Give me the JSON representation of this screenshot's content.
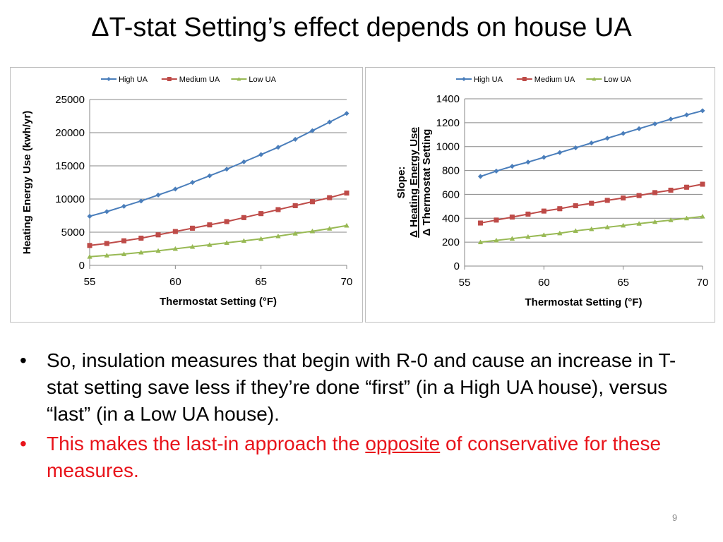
{
  "slide": {
    "title": "ΔT-stat Setting’s effect  depends on house UA",
    "page_number": "9"
  },
  "bullets": {
    "b1": "So, insulation measures that begin with R-0 and cause an increase in T-stat setting save less if they’re done “first” (in a High UA house), versus “last” (in a Low UA house).",
    "b2_pre": "This makes the last-in approach the ",
    "b2_underlined": "opposite",
    "b2_post": " of conservative for these measures.",
    "marker": "•"
  },
  "colors": {
    "high_ua": "#4a7ebb",
    "medium_ua": "#be4b48",
    "low_ua": "#98b954",
    "gridline": "#878787",
    "bullet2_text": "#e8141b"
  },
  "chart_data": [
    {
      "type": "line",
      "xlabel": "Thermostat Setting (°F)",
      "ylabel": "Heating Energy Use (kwh/yr)",
      "xlim": [
        55,
        70
      ],
      "ylim": [
        0,
        25000
      ],
      "xticks": [
        55,
        60,
        65,
        70
      ],
      "yticks": [
        0,
        5000,
        10000,
        15000,
        20000,
        25000
      ],
      "grid": true,
      "legend": "top",
      "x": [
        55,
        56,
        57,
        58,
        59,
        60,
        61,
        62,
        63,
        64,
        65,
        66,
        67,
        68,
        69,
        70
      ],
      "series": [
        {
          "name": "High UA",
          "marker": "diamond",
          "values": [
            7400,
            8100,
            8900,
            9700,
            10600,
            11500,
            12500,
            13500,
            14500,
            15600,
            16700,
            17800,
            19000,
            20300,
            21600,
            22900
          ]
        },
        {
          "name": "Medium UA",
          "marker": "square",
          "values": [
            3000,
            3300,
            3700,
            4100,
            4600,
            5100,
            5600,
            6100,
            6600,
            7200,
            7800,
            8400,
            9000,
            9600,
            10200,
            10900
          ]
        },
        {
          "name": "Low UA",
          "marker": "triangle",
          "values": [
            1300,
            1500,
            1700,
            1950,
            2200,
            2500,
            2800,
            3100,
            3400,
            3700,
            4000,
            4400,
            4800,
            5150,
            5550,
            6000
          ]
        }
      ]
    },
    {
      "type": "line",
      "xlabel": "Thermostat Setting (°F)",
      "ylabel_lines": [
        "Slope:",
        "Δ Heating Energy Use",
        "Δ Thermostat Setting"
      ],
      "xlim": [
        55,
        70
      ],
      "ylim": [
        0,
        1400
      ],
      "xticks": [
        55,
        60,
        65,
        70
      ],
      "yticks": [
        0,
        200,
        400,
        600,
        800,
        1000,
        1200,
        1400
      ],
      "grid": true,
      "legend": "top",
      "x": [
        56,
        57,
        58,
        59,
        60,
        61,
        62,
        63,
        64,
        65,
        66,
        67,
        68,
        69,
        70
      ],
      "series": [
        {
          "name": "High UA",
          "marker": "diamond",
          "values": [
            750,
            795,
            835,
            870,
            910,
            950,
            990,
            1030,
            1070,
            1110,
            1150,
            1190,
            1230,
            1265,
            1300
          ]
        },
        {
          "name": "Medium UA",
          "marker": "square",
          "values": [
            360,
            385,
            410,
            435,
            460,
            480,
            505,
            525,
            550,
            570,
            590,
            615,
            635,
            660,
            685
          ]
        },
        {
          "name": "Low UA",
          "marker": "triangle",
          "values": [
            200,
            215,
            230,
            245,
            260,
            275,
            295,
            310,
            325,
            340,
            355,
            370,
            385,
            400,
            415
          ]
        }
      ]
    }
  ]
}
